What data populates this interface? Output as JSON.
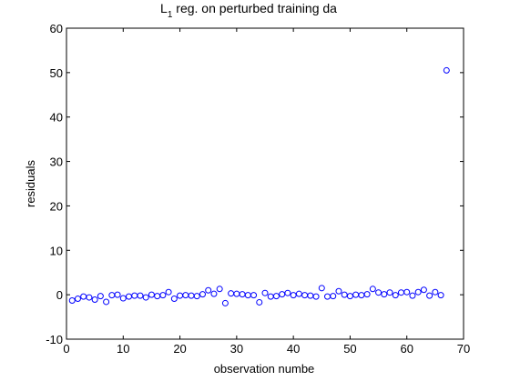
{
  "chart_data": {
    "type": "scatter",
    "title_main": "L",
    "title_sub": "1",
    "title_rest": " reg. on perturbed training da",
    "xlabel": "observation numbe",
    "ylabel": "residuals",
    "xlim": [
      0,
      70
    ],
    "ylim": [
      -10,
      60
    ],
    "xticks": [
      0,
      10,
      20,
      30,
      40,
      50,
      60,
      70
    ],
    "yticks": [
      -10,
      0,
      10,
      20,
      30,
      40,
      50,
      60
    ],
    "marker": "circle-open",
    "marker_color": "#0000ff",
    "grid": false,
    "series": [
      {
        "x": [
          1,
          2,
          3,
          4,
          5,
          6,
          7,
          8,
          9,
          10,
          11,
          12,
          13,
          14,
          15,
          16,
          17,
          18,
          19,
          20,
          21,
          22,
          23,
          24,
          25,
          26,
          27,
          28,
          29,
          30,
          31,
          32,
          33,
          34,
          35,
          36,
          37,
          38,
          39,
          40,
          41,
          42,
          43,
          44,
          45,
          46,
          47,
          48,
          49,
          50,
          51,
          52,
          53,
          54,
          55,
          56,
          57,
          58,
          59,
          60,
          61,
          62,
          63,
          64,
          65,
          66,
          67
        ],
        "y": [
          -1.3,
          -0.9,
          -0.4,
          -0.6,
          -1.1,
          -0.3,
          -1.6,
          -0.1,
          0.0,
          -0.8,
          -0.4,
          -0.2,
          -0.2,
          -0.6,
          0.0,
          -0.3,
          -0.1,
          0.6,
          -0.9,
          -0.2,
          -0.1,
          -0.2,
          -0.3,
          0.1,
          1.0,
          0.2,
          1.3,
          -1.9,
          0.3,
          0.2,
          0.1,
          -0.1,
          -0.1,
          -1.7,
          0.4,
          -0.4,
          -0.3,
          0.1,
          0.4,
          -0.1,
          0.2,
          -0.1,
          -0.2,
          -0.4,
          1.5,
          -0.4,
          -0.3,
          0.8,
          0.0,
          -0.3,
          0.0,
          -0.1,
          0.1,
          1.3,
          0.5,
          0.1,
          0.5,
          -0.1,
          0.5,
          0.6,
          -0.2,
          0.6,
          1.1,
          -0.2,
          0.6,
          -0.1,
          50.5
        ]
      }
    ]
  }
}
